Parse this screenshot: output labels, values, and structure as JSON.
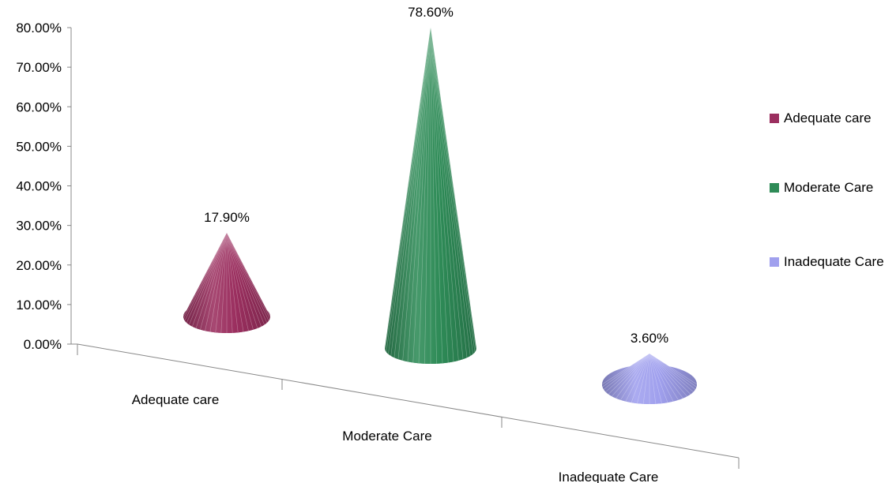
{
  "chart_data": {
    "type": "bar",
    "style": "3d-cone",
    "categories": [
      "Adequate care",
      "Moderate Care",
      "Inadequate Care"
    ],
    "values": [
      17.9,
      78.6,
      3.6
    ],
    "data_labels": [
      "17.90%",
      "78.60%",
      "3.60%"
    ],
    "colors": [
      "#9b2f5f",
      "#2e8b57",
      "#a0a0ee"
    ],
    "ylim": [
      0,
      80
    ],
    "y_ticks": [
      "0.00%",
      "10.00%",
      "20.00%",
      "30.00%",
      "40.00%",
      "50.00%",
      "60.00%",
      "70.00%",
      "80.00%"
    ],
    "legend": {
      "placement": "right",
      "entries": [
        "Adequate care",
        "Moderate Care",
        "Inadequate Care"
      ]
    },
    "grid": false,
    "title": "",
    "xlabel": "",
    "ylabel": ""
  }
}
